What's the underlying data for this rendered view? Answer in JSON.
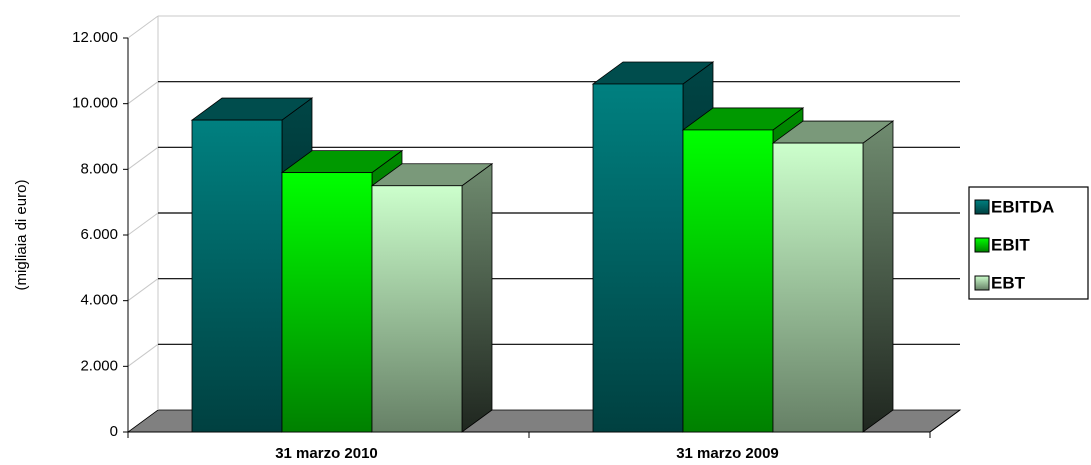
{
  "chart_data": {
    "type": "bar3d",
    "y_label": "(migliaia di euro)",
    "categories": [
      "31 marzo 2010",
      "31 marzo 2009"
    ],
    "series": [
      {
        "name": "EBITDA",
        "color": "#008080",
        "values": [
          9500,
          10600
        ]
      },
      {
        "name": "EBIT",
        "color": "#00ff00",
        "values": [
          7900,
          9200
        ]
      },
      {
        "name": "EBT",
        "color": "#ccffcc",
        "values": [
          7500,
          8800
        ]
      }
    ],
    "ylim": [
      0,
      12000
    ],
    "yticks": [
      {
        "value": 0,
        "label": "0"
      },
      {
        "value": 2000,
        "label": "2.000"
      },
      {
        "value": 4000,
        "label": "4.000"
      },
      {
        "value": 6000,
        "label": "6.000"
      },
      {
        "value": 8000,
        "label": "8.000"
      },
      {
        "value": 10000,
        "label": "10.000"
      },
      {
        "value": 12000,
        "label": "12.000"
      }
    ],
    "grid": true,
    "legend": "right"
  }
}
